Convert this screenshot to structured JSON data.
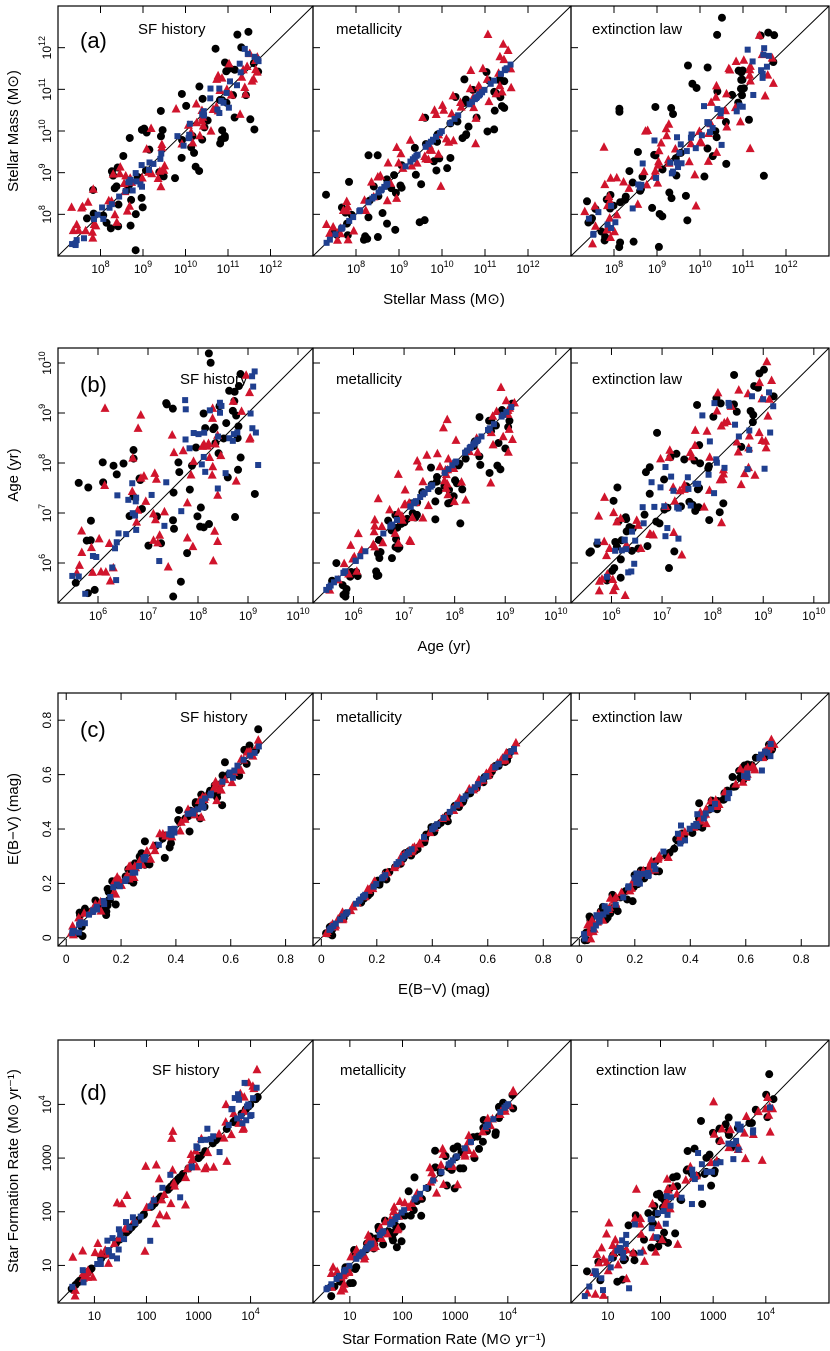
{
  "figure": {
    "colors": {
      "black": "#000000",
      "blue": "#1f3f8f",
      "red": "#d0142c",
      "frame": "#000000"
    },
    "marker_shapes": {
      "black": "circle",
      "blue": "square",
      "red": "triangle"
    }
  },
  "chart_data": [
    {
      "type": "scatter",
      "scale": "log",
      "label": "(a)",
      "panel_titles": [
        "SF history",
        "metallicity",
        "extinction law"
      ],
      "xlabel": "Stellar Mass (M⊙)",
      "ylabel": "Stellar Mass (M⊙)",
      "range": [
        7.0,
        13.0
      ],
      "ticks": [
        {
          "v": 8,
          "b": "10",
          "e": "8"
        },
        {
          "v": 9,
          "b": "10",
          "e": "9"
        },
        {
          "v": 10,
          "b": "10",
          "e": "10"
        },
        {
          "v": 11,
          "b": "10",
          "e": "11"
        },
        {
          "v": 12,
          "b": "10",
          "e": "12"
        }
      ],
      "series": [
        {
          "name": "black",
          "spread": [
            0.7,
            0.55,
            1.0
          ]
        },
        {
          "name": "red",
          "spread": [
            0.4,
            0.45,
            0.6
          ]
        },
        {
          "name": "blue",
          "spread": [
            0.2,
            0.0,
            0.35
          ]
        }
      ]
    },
    {
      "type": "scatter",
      "scale": "log",
      "label": "(b)",
      "panel_titles": [
        "SF history",
        "metallicity",
        "extinction law"
      ],
      "xlabel": "Age (yr)",
      "ylabel": "Age (yr)",
      "range": [
        5.2,
        10.3
      ],
      "ticks": [
        {
          "v": 6,
          "b": "10",
          "e": "6"
        },
        {
          "v": 7,
          "b": "10",
          "e": "7"
        },
        {
          "v": 8,
          "b": "10",
          "e": "8"
        },
        {
          "v": 9,
          "b": "10",
          "e": "9"
        },
        {
          "v": 10,
          "b": "10",
          "e": "10"
        }
      ],
      "series": [
        {
          "name": "black",
          "spread": [
            1.4,
            0.45,
            0.9
          ]
        },
        {
          "name": "red",
          "spread": [
            1.1,
            0.5,
            0.8
          ]
        },
        {
          "name": "blue",
          "spread": [
            0.7,
            0.0,
            0.6
          ]
        }
      ]
    },
    {
      "type": "scatter",
      "scale": "linear",
      "label": "(c)",
      "panel_titles": [
        "SF history",
        "metallicity",
        "extinction law"
      ],
      "xlabel": "E(B−V) (mag)",
      "ylabel": "E(B−V) (mag)",
      "range": [
        -0.03,
        0.9
      ],
      "ticks": [
        {
          "v": 0,
          "t": "0"
        },
        {
          "v": 0.2,
          "t": "0.2"
        },
        {
          "v": 0.4,
          "t": "0.4"
        },
        {
          "v": 0.6,
          "t": "0.6"
        },
        {
          "v": 0.8,
          "t": "0.8"
        }
      ],
      "series": [
        {
          "name": "black",
          "spread": [
            0.2,
            0.05,
            0.15
          ]
        },
        {
          "name": "red",
          "spread": [
            0.12,
            0.05,
            0.12
          ]
        },
        {
          "name": "blue",
          "spread": [
            0.06,
            0.0,
            0.12
          ]
        }
      ]
    },
    {
      "type": "scatter",
      "scale": "log",
      "label": "(d)",
      "panel_titles": [
        "SF history",
        "metallicity",
        "extinction law"
      ],
      "xlabel": "Star Formation Rate (M⊙ yr⁻¹)",
      "ylabel": "Star Formation Rate (M⊙ yr⁻¹)",
      "range": [
        0.3,
        5.2
      ],
      "ticks": [
        {
          "v": 1,
          "t": "10"
        },
        {
          "v": 2,
          "t": "100"
        },
        {
          "v": 3,
          "t": "1000"
        },
        {
          "v": 4,
          "b": "10",
          "e": "4"
        }
      ],
      "series": [
        {
          "name": "black",
          "spread": [
            0.0,
            0.25,
            0.45
          ]
        },
        {
          "name": "red",
          "spread": [
            0.5,
            0.2,
            0.45
          ]
        },
        {
          "name": "blue",
          "spread": [
            0.25,
            0.0,
            0.3
          ]
        }
      ]
    }
  ]
}
